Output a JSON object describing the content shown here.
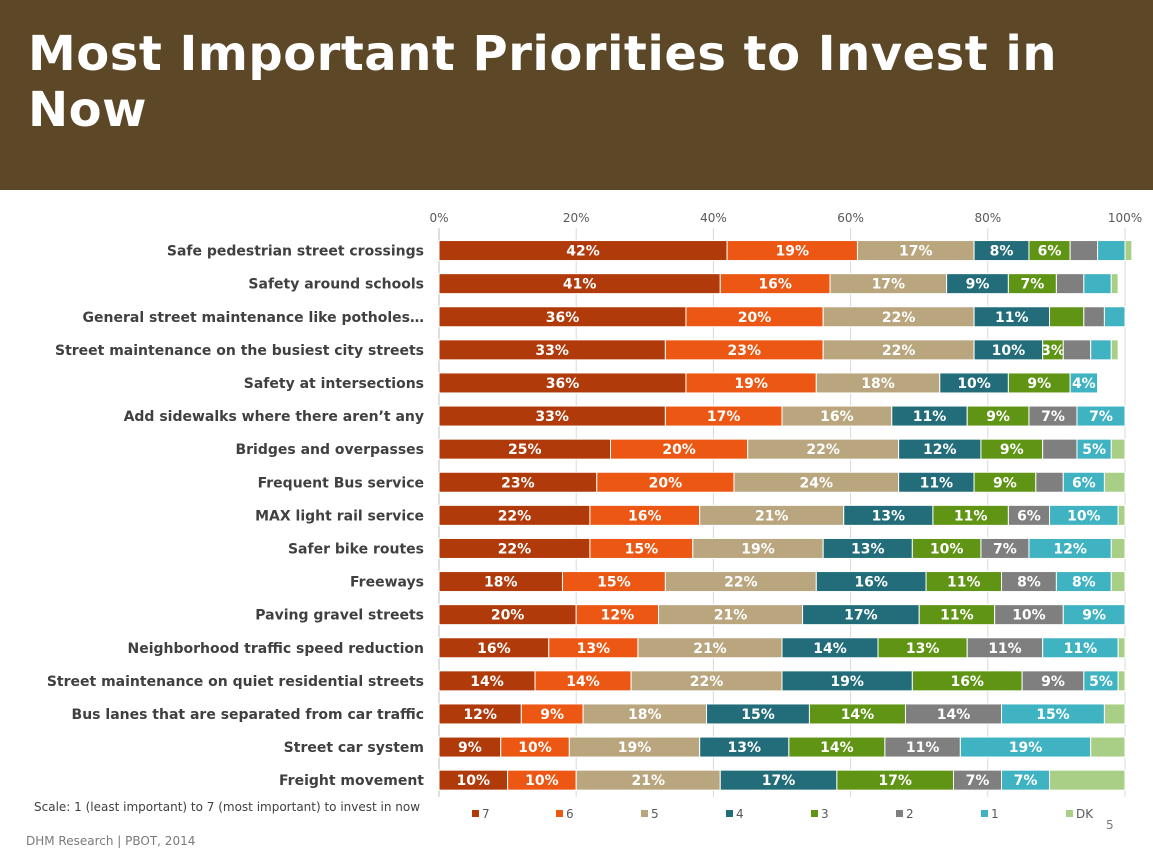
{
  "header": {
    "title": "Most Important Priorities to Invest in Now"
  },
  "footer": {
    "scale_note": "Scale: 1 (least important) to 7 (most important) to invest in now",
    "source": "DHM Research | PBOT, 2014",
    "page_number": "5"
  },
  "chart_data": {
    "type": "bar",
    "orientation": "horizontal",
    "stacked": true,
    "xlim": [
      0,
      100
    ],
    "x_ticks": [
      "0%",
      "20%",
      "40%",
      "60%",
      "80%",
      "100%"
    ],
    "legend_position": "bottom",
    "categories": [
      "Safe pedestrian street crossings",
      "Safety around schools",
      "General street maintenance like potholes…",
      "Street maintenance on the busiest city streets",
      "Safety at intersections",
      "Add sidewalks where there aren’t any",
      "Bridges and overpasses",
      "Frequent Bus service",
      "MAX light rail service",
      "Safer bike routes",
      "Freeways",
      "Paving gravel streets",
      "Neighborhood traffic speed reduction",
      "Street maintenance on quiet residential streets",
      "Bus lanes that are separated from car traffic",
      "Street car system",
      "Freight movement"
    ],
    "series": [
      {
        "name": "7",
        "color": "#b03a0a",
        "values": [
          42,
          41,
          36,
          33,
          36,
          33,
          25,
          23,
          22,
          22,
          18,
          20,
          16,
          14,
          12,
          9,
          10
        ]
      },
      {
        "name": "6",
        "color": "#ec5713",
        "values": [
          19,
          16,
          20,
          23,
          19,
          17,
          20,
          20,
          16,
          15,
          15,
          12,
          13,
          14,
          9,
          10,
          10
        ]
      },
      {
        "name": "5",
        "color": "#b9a67e",
        "values": [
          17,
          17,
          22,
          22,
          18,
          16,
          22,
          24,
          21,
          19,
          22,
          21,
          21,
          22,
          18,
          19,
          21
        ]
      },
      {
        "name": "4",
        "color": "#226d79",
        "values": [
          8,
          9,
          11,
          10,
          10,
          11,
          12,
          11,
          13,
          13,
          16,
          17,
          14,
          19,
          15,
          13,
          17
        ]
      },
      {
        "name": "3",
        "color": "#5f9415",
        "values": [
          6,
          7,
          5,
          3,
          9,
          9,
          9,
          9,
          11,
          10,
          11,
          11,
          13,
          16,
          14,
          14,
          17
        ]
      },
      {
        "name": "2",
        "color": "#7f7f7f",
        "values": [
          4,
          4,
          3,
          4,
          0,
          7,
          5,
          4,
          6,
          7,
          8,
          10,
          11,
          9,
          14,
          11,
          7
        ]
      },
      {
        "name": "1",
        "color": "#3fb3c2",
        "values": [
          4,
          4,
          3,
          3,
          4,
          7,
          5,
          6,
          10,
          12,
          8,
          9,
          11,
          5,
          15,
          19,
          7
        ]
      },
      {
        "name": "DK",
        "color": "#a9cf86",
        "values": [
          1,
          1,
          0,
          1,
          0,
          0,
          2,
          3,
          1,
          2,
          2,
          0,
          1,
          1,
          3,
          5,
          11
        ]
      }
    ],
    "label_values": [
      [
        "42%",
        "19%",
        "17%",
        "8%",
        "6%",
        "",
        "",
        ""
      ],
      [
        "41%",
        "16%",
        "17%",
        "9%",
        "7%",
        "",
        "",
        ""
      ],
      [
        "36%",
        "20%",
        "22%",
        "11%",
        "",
        "",
        "",
        ""
      ],
      [
        "33%",
        "23%",
        "22%",
        "10%",
        "3%",
        "",
        "",
        ""
      ],
      [
        "36%",
        "19%",
        "18%",
        "10%",
        "9%",
        "",
        "4%",
        ""
      ],
      [
        "33%",
        "17%",
        "16%",
        "11%",
        "9%",
        "7%",
        "7%",
        ""
      ],
      [
        "25%",
        "20%",
        "22%",
        "12%",
        "9%",
        "",
        "5%",
        ""
      ],
      [
        "23%",
        "20%",
        "24%",
        "11%",
        "9%",
        "",
        "6%",
        ""
      ],
      [
        "22%",
        "16%",
        "21%",
        "13%",
        "11%",
        "6%",
        "10%",
        ""
      ],
      [
        "22%",
        "15%",
        "19%",
        "13%",
        "10%",
        "7%",
        "12%",
        ""
      ],
      [
        "18%",
        "15%",
        "22%",
        "16%",
        "11%",
        "8%",
        "8%",
        ""
      ],
      [
        "20%",
        "12%",
        "21%",
        "17%",
        "11%",
        "10%",
        "9%",
        ""
      ],
      [
        "16%",
        "13%",
        "21%",
        "14%",
        "13%",
        "11%",
        "11%",
        ""
      ],
      [
        "14%",
        "14%",
        "22%",
        "19%",
        "16%",
        "9%",
        "5%",
        ""
      ],
      [
        "12%",
        "9%",
        "18%",
        "15%",
        "14%",
        "14%",
        "15%",
        ""
      ],
      [
        "9%",
        "10%",
        "19%",
        "13%",
        "14%",
        "11%",
        "19%",
        ""
      ],
      [
        "10%",
        "10%",
        "21%",
        "17%",
        "17%",
        "7%",
        "7%",
        ""
      ]
    ]
  }
}
